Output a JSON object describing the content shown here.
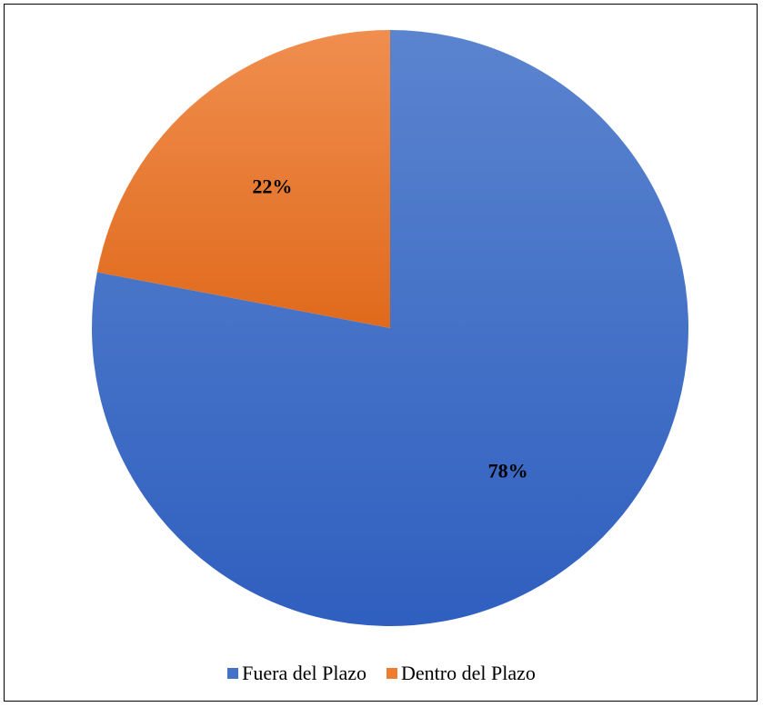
{
  "chart_data": {
    "type": "pie",
    "title": "",
    "categories": [
      "Fuera del Plazo",
      "Dentro del Plazo"
    ],
    "values": [
      78,
      22
    ],
    "labels": [
      "78%",
      "22%"
    ],
    "colors": [
      "#4472c4",
      "#ed7d31"
    ],
    "start_angle_deg": 0,
    "direction": "clockwise",
    "legend_position": "bottom"
  }
}
